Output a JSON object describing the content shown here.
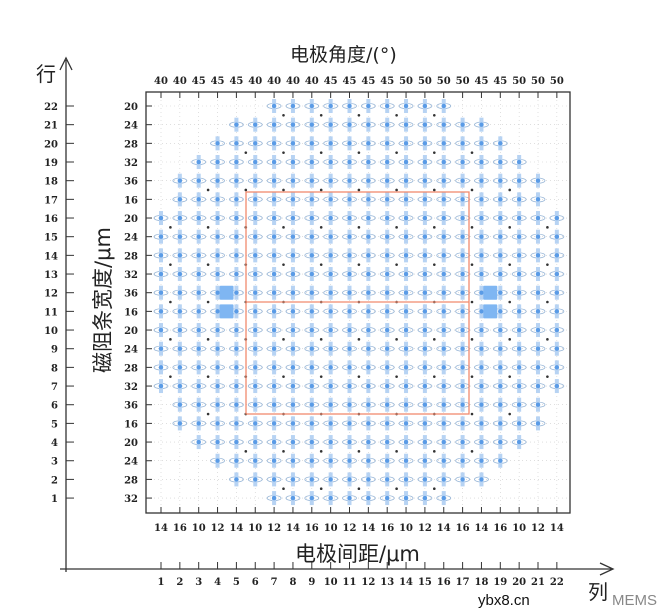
{
  "titles": {
    "top": "电极角度/(°)",
    "bottom": "电极间距/μm",
    "left": "磁阻条宽度/μm",
    "row_axis": "行",
    "col_axis": "列"
  },
  "top_labels": [
    "40",
    "40",
    "45",
    "45",
    "45",
    "40",
    "40",
    "40",
    "40",
    "45",
    "45",
    "45",
    "45",
    "50",
    "50",
    "50",
    "50",
    "45",
    "45",
    "50",
    "50",
    "50"
  ],
  "bottom_labels": [
    "14",
    "16",
    "10",
    "12",
    "14",
    "10",
    "12",
    "14",
    "16",
    "10",
    "12",
    "14",
    "16",
    "10",
    "12",
    "14",
    "16",
    "14",
    "16",
    "10",
    "12",
    "14"
  ],
  "left_labels": [
    "20",
    "24",
    "28",
    "32",
    "36",
    "16",
    "20",
    "24",
    "28",
    "32",
    "36",
    "16",
    "20",
    "24",
    "28",
    "32",
    "36",
    "16",
    "20",
    "24",
    "28",
    "32"
  ],
  "row_numbers": [
    "22",
    "21",
    "20",
    "19",
    "18",
    "17",
    "16",
    "15",
    "14",
    "13",
    "12",
    "11",
    "10",
    "9",
    "8",
    "7",
    "6",
    "5",
    "4",
    "3",
    "2",
    "1"
  ],
  "column_numbers": [
    "1",
    "2",
    "3",
    "4",
    "5",
    "6",
    "7",
    "8",
    "9",
    "10",
    "11",
    "12",
    "13",
    "14",
    "15",
    "16",
    "17",
    "18",
    "19",
    "20",
    "21",
    "22"
  ],
  "watermark": {
    "site": "ybx8.cn",
    "brand": "MEMS"
  },
  "colors": {
    "device": "#5a9be6",
    "pad": "#7fb6f2",
    "highlight": "#f08a6e",
    "axis": "#333333"
  }
}
